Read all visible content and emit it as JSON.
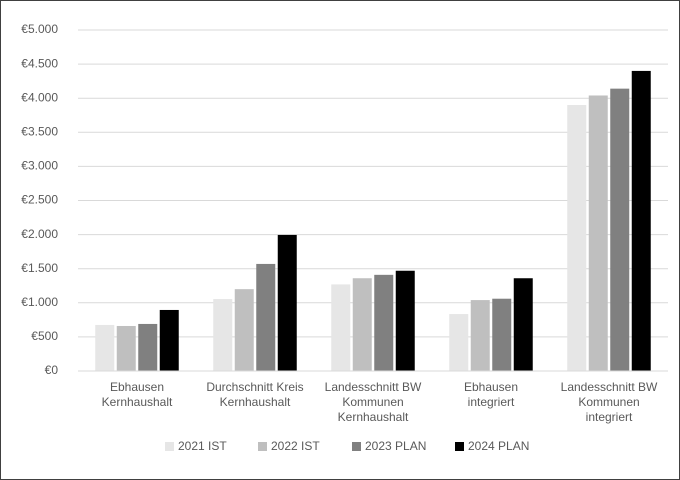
{
  "chart_data": {
    "type": "bar",
    "categories": [
      "Ebhausen\nKernhaushalt",
      "Durchschnitt Kreis\nKernhaushalt",
      "Landesschnitt BW\nKommunen\nKernhaushalt",
      "Ebhausen\nintegriert",
      "Landesschnitt BW\nKommunen\nintegriert"
    ],
    "series": [
      {
        "name": "2021 IST",
        "color": "#e6e6e6",
        "values": [
          675,
          1055,
          1270,
          835,
          3900
        ]
      },
      {
        "name": "2022 IST",
        "color": "#bfbfbf",
        "values": [
          660,
          1200,
          1360,
          1040,
          4040
        ]
      },
      {
        "name": "2023 PLAN",
        "color": "#808080",
        "values": [
          690,
          1570,
          1410,
          1060,
          4140
        ]
      },
      {
        "name": "2024 PLAN",
        "color": "#000000",
        "values": [
          895,
          1995,
          1470,
          1360,
          4400
        ]
      }
    ],
    "ylim": [
      0,
      5000
    ],
    "yticks": [
      {
        "value": 0,
        "label": "€0"
      },
      {
        "value": 500,
        "label": "€500"
      },
      {
        "value": 1000,
        "label": "€1.000"
      },
      {
        "value": 1500,
        "label": "€1.500"
      },
      {
        "value": 2000,
        "label": "€2.000"
      },
      {
        "value": 2500,
        "label": "€2.500"
      },
      {
        "value": 3000,
        "label": "€3.000"
      },
      {
        "value": 3500,
        "label": "€3.500"
      },
      {
        "value": 4000,
        "label": "€4.000"
      },
      {
        "value": 4500,
        "label": "€4.500"
      },
      {
        "value": 5000,
        "label": "€5.000"
      }
    ],
    "grid": true,
    "legend": "bottom"
  }
}
